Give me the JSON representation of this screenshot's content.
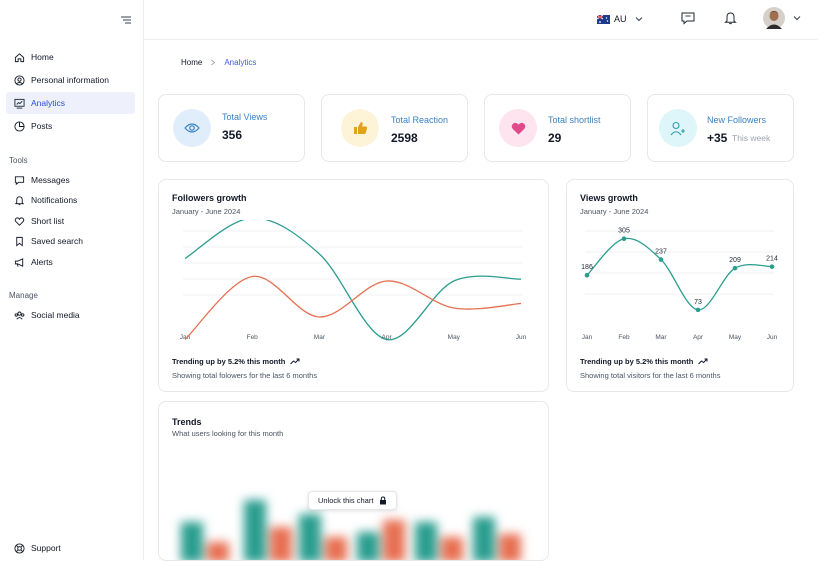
{
  "sidebar": {
    "main_items": [
      {
        "label": "Home",
        "icon": "home-icon"
      },
      {
        "label": "Personal information",
        "icon": "user-circle-icon"
      },
      {
        "label": "Analytics",
        "icon": "analytics-icon",
        "active": true
      },
      {
        "label": "Posts",
        "icon": "pie-chart-icon"
      }
    ],
    "tools_label": "Tools",
    "tools_items": [
      {
        "label": "Messages",
        "icon": "message-icon"
      },
      {
        "label": "Notifications",
        "icon": "bell-icon"
      },
      {
        "label": "Short list",
        "icon": "heart-icon"
      },
      {
        "label": "Saved search",
        "icon": "bookmark-icon"
      },
      {
        "label": "Alerts",
        "icon": "megaphone-icon"
      }
    ],
    "manage_label": "Manage",
    "manage_items": [
      {
        "label": "Social media",
        "icon": "users-icon"
      }
    ],
    "support_label": "Support"
  },
  "topbar": {
    "locale": "AU",
    "flag": "australia-flag-icon"
  },
  "breadcrumb": {
    "home": "Home",
    "current": "Analytics"
  },
  "stats": [
    {
      "label": "Total Views",
      "value": "356",
      "icon": "eye-icon",
      "color": "#3b82c4",
      "bg": "#e0eefb"
    },
    {
      "label": "Total Reaction",
      "value": "2598",
      "icon": "thumbs-up-icon",
      "color": "#b8860b",
      "bg": "#fdf3d7"
    },
    {
      "label": "Total shortlist",
      "value": "29",
      "icon": "heart-icon",
      "color": "#c2416b",
      "bg": "#fde4ee"
    },
    {
      "label": "New Followers",
      "value": "+35",
      "extra": "This week",
      "icon": "user-plus-icon",
      "color": "#2f9bb0",
      "bg": "#def6f9"
    }
  ],
  "followers": {
    "title": "Followers growth",
    "subtitle": "January - June 2024",
    "trend": "Trending up by 5.2% this month",
    "footer": "Showing total folowers for the last 6 months"
  },
  "views": {
    "title": "Views growth",
    "subtitle": "January - June 2024",
    "trend": "Trending up by 5.2% this month",
    "footer": "Showing total visitors for the last 6 months"
  },
  "trends": {
    "title": "Trends",
    "subtitle": "What users looking for this month",
    "unlock_label": "Unlock this chart"
  },
  "chart_data": [
    {
      "type": "line",
      "categories": [
        "Jan",
        "Feb",
        "Mar",
        "Apr",
        "May",
        "Jun"
      ],
      "series": [
        {
          "color": "#2a9d8f",
          "values": [
            255,
            300,
            260,
            165,
            230,
            232
          ]
        },
        {
          "color": "#e76f51",
          "values": [
            165,
            235,
            190,
            230,
            200,
            205
          ]
        }
      ],
      "ylim": [
        120,
        320
      ],
      "grid": true
    },
    {
      "type": "line",
      "categories": [
        "Jan",
        "Feb",
        "Mar",
        "Apr",
        "May",
        "Jun"
      ],
      "series": [
        {
          "color": "#2a9d8f",
          "values": [
            186,
            305,
            237,
            73,
            209,
            214
          ]
        }
      ],
      "ylim": [
        40,
        340
      ],
      "grid": true
    }
  ]
}
